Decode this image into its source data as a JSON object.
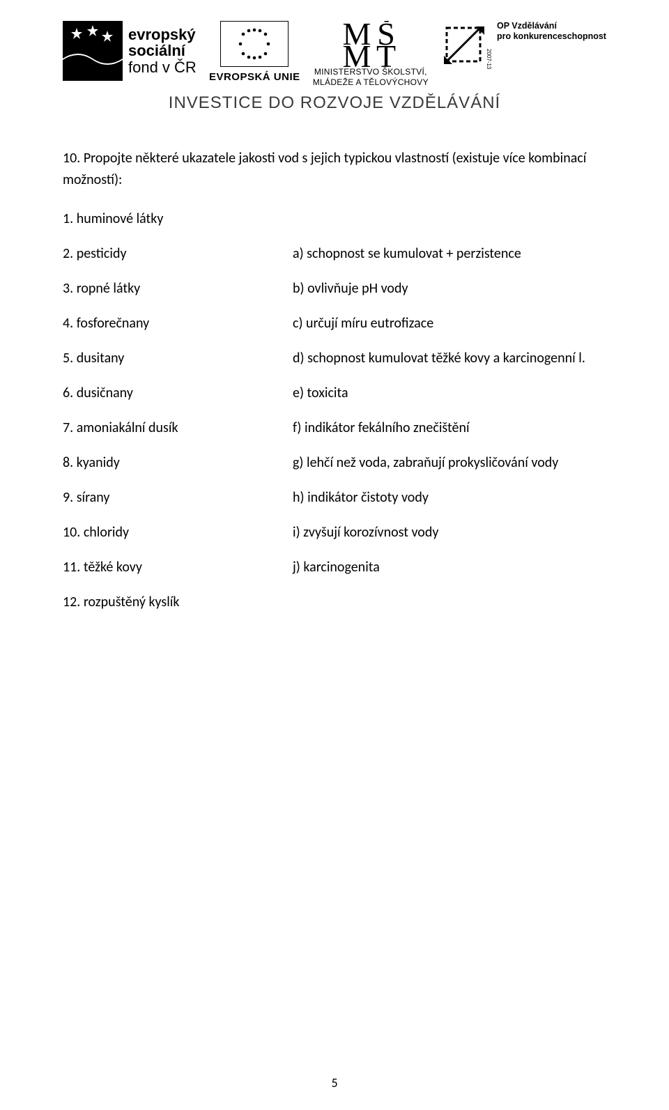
{
  "header": {
    "esf": {
      "line1": "evropský",
      "line2": "sociální",
      "line3": "fond v ČR"
    },
    "eu_label": "EVROPSKÁ UNIE",
    "msmt": {
      "line1": "MINISTERSTVO ŠKOLSTVÍ,",
      "line2": "MLÁDEŽE A TĚLOVÝCHOVY"
    },
    "opvk": {
      "line1": "OP Vzdělávání",
      "line2": "pro konkurenceschopnost",
      "year": "2007-13"
    },
    "investice": "INVESTICE DO ROZVOJE VZDĚLÁVÁNÍ"
  },
  "question": {
    "intro": "10. Propojte některé ukazatele jakosti vod s jejich typickou vlastností (existuje více kombinací možností):",
    "pairs": [
      {
        "left": "1. huminové látky",
        "right": ""
      },
      {
        "left": "2. pesticidy",
        "right": "a) schopnost se kumulovat +  perzistence"
      },
      {
        "left": "3. ropné látky",
        "right": "b) ovlivňuje pH vody"
      },
      {
        "left": "4. fosforečnany",
        "right": "c) určují míru eutrofizace"
      },
      {
        "left": "5. dusitany",
        "right": "d) schopnost kumulovat těžké kovy a karcinogenní l."
      },
      {
        "left": "6. dusičnany",
        "right": "e) toxicita"
      },
      {
        "left": "7. amoniakální dusík",
        "right": "f) indikátor fekálního znečištění"
      },
      {
        "left": "8. kyanidy",
        "right": "g) lehčí než voda, zabraňují prokysličování vody"
      },
      {
        "left": "9. sírany",
        "right": "h) indikátor čistoty vody"
      },
      {
        "left": "10. chloridy",
        "right": "i) zvyšují korozívnost vody"
      },
      {
        "left": "11. těžké kovy",
        "right": "j) karcinogenita"
      },
      {
        "left": "12. rozpuštěný kyslík",
        "right": ""
      }
    ]
  },
  "page_number": "5",
  "colors": {
    "text": "#000000",
    "bg": "#ffffff",
    "grey": "#3a3a3a"
  },
  "fonts": {
    "body": "Calibri",
    "body_size_pt": 15,
    "header_logo": "Arial"
  }
}
